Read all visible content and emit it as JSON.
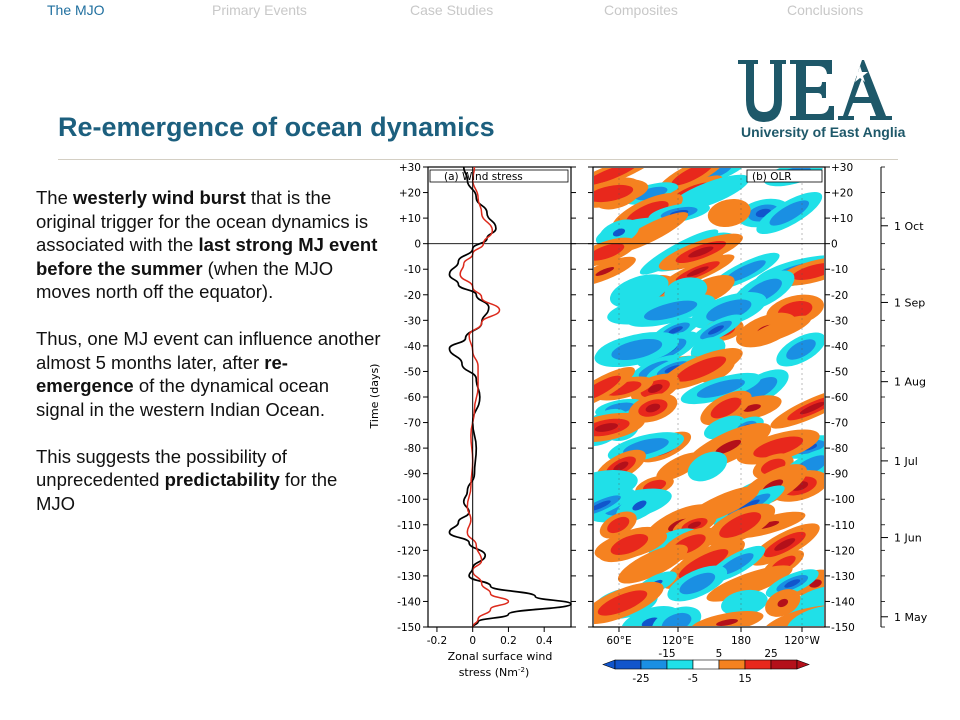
{
  "nav": {
    "items": [
      {
        "label": "The MJO",
        "active": true
      },
      {
        "label": "Primary Events",
        "active": false
      },
      {
        "label": "Case Studies",
        "active": false
      },
      {
        "label": "Composites",
        "active": false
      },
      {
        "label": "Conclusions",
        "active": false
      }
    ]
  },
  "logo": {
    "mark": "UEA",
    "caption": "University of East Anglia",
    "color": "#1e5869"
  },
  "slide": {
    "title": "Re-emergence of ocean dynamics",
    "p1": {
      "t1": "The ",
      "b1": "westerly wind burst",
      "t2": " that is the original trigger for the ocean dynamics is associated with the ",
      "b2": "last strong MJ event before the summer",
      "t3": " (when the MJO moves north off the equator)."
    },
    "p2": {
      "t1": "Thus, one MJ event can influence another almost 5 months later, after ",
      "b1": "re-emergence",
      "t2": " of the dynamical ocean signal in the western Indian Ocean."
    },
    "p3": {
      "t1": "This suggests the possibility of unprecedented ",
      "b1": "predictability",
      "t2": " for the MJO"
    }
  },
  "figure": {
    "panel_a_label": "(a) Wind stress",
    "panel_b_label": "(b) OLR",
    "y_axis_label": "Time (days)",
    "y_ticks": [
      30,
      20,
      10,
      0,
      -10,
      -20,
      -30,
      -40,
      -50,
      -60,
      -70,
      -80,
      -90,
      -100,
      -110,
      -120,
      -130,
      -140,
      -150
    ],
    "y_tick_labels": [
      "+30",
      "+20",
      "+10",
      "0",
      "-10",
      "-20",
      "-30",
      "-40",
      "-50",
      "-60",
      "-70",
      "-80",
      "-90",
      "-100",
      "-110",
      "-120",
      "-130",
      "-140",
      "-150"
    ],
    "x_ticks_a": [
      -0.2,
      0,
      0.2,
      0.4
    ],
    "x_tick_labels_a": [
      "-0.2",
      "0",
      "0.2",
      "0.4"
    ],
    "x_label_a_line1": "Zonal surface wind",
    "x_label_a_line2": "stress (Nm",
    "x_label_a_sup": "-2",
    "x_label_a_close": ")",
    "x_ticks_b": [
      "60°E",
      "120°E",
      "180",
      "120°W"
    ],
    "date_labels": [
      {
        "label": "1 Oct",
        "day": 7
      },
      {
        "label": "1 Sep",
        "day": -23
      },
      {
        "label": "1 Aug",
        "day": -54
      },
      {
        "label": "1 Jul",
        "day": -85
      },
      {
        "label": "1 Jun",
        "day": -115
      },
      {
        "label": "1 May",
        "day": -146
      }
    ],
    "colorbar_top_labels": [
      "-15",
      "5",
      "25"
    ],
    "colorbar_bottom_labels": [
      "-25",
      "-5",
      "15"
    ],
    "colorbar_colors": [
      "#1155cc",
      "#1a8fe3",
      "#20e0e8",
      "#ffffff",
      "#f58220",
      "#e8281c",
      "#b4101a"
    ],
    "series": [
      {
        "color": "#000000",
        "points": [
          [
            -0.05,
            30
          ],
          [
            -0.03,
            25
          ],
          [
            0.02,
            18
          ],
          [
            0.08,
            12
          ],
          [
            0.13,
            6
          ],
          [
            0.08,
            2
          ],
          [
            0.0,
            -2
          ],
          [
            -0.08,
            -7
          ],
          [
            -0.13,
            -12
          ],
          [
            -0.08,
            -16
          ],
          [
            0.02,
            -20
          ],
          [
            0.09,
            -25
          ],
          [
            0.05,
            -31
          ],
          [
            -0.04,
            -37
          ],
          [
            -0.13,
            -41
          ],
          [
            -0.06,
            -47
          ],
          [
            0.02,
            -53
          ],
          [
            0.04,
            -60
          ],
          [
            0.0,
            -70
          ],
          [
            0.02,
            -80
          ],
          [
            0.01,
            -90
          ],
          [
            -0.03,
            -97
          ],
          [
            -0.05,
            -101
          ],
          [
            -0.02,
            -105
          ],
          [
            -0.08,
            -109
          ],
          [
            -0.13,
            -113
          ],
          [
            -0.02,
            -117
          ],
          [
            0.07,
            -122
          ],
          [
            0.0,
            -127
          ],
          [
            -0.02,
            -130
          ],
          [
            0.1,
            -134
          ],
          [
            0.35,
            -138
          ],
          [
            0.55,
            -141
          ],
          [
            0.2,
            -145
          ],
          [
            0.03,
            -148
          ],
          [
            0.0,
            -150
          ]
        ]
      },
      {
        "color": "#dc2a1c",
        "points": [
          [
            0.01,
            30
          ],
          [
            0.0,
            25
          ],
          [
            0.03,
            18
          ],
          [
            0.05,
            12
          ],
          [
            0.11,
            5
          ],
          [
            0.06,
            0
          ],
          [
            0.0,
            -4
          ],
          [
            -0.05,
            -8
          ],
          [
            -0.07,
            -12
          ],
          [
            0.0,
            -17
          ],
          [
            0.05,
            -21
          ],
          [
            0.15,
            -26
          ],
          [
            0.05,
            -31
          ],
          [
            -0.02,
            -36
          ],
          [
            0.0,
            -42
          ],
          [
            0.03,
            -48
          ],
          [
            0.03,
            -56
          ],
          [
            0.01,
            -65
          ],
          [
            -0.01,
            -75
          ],
          [
            0.0,
            -85
          ],
          [
            -0.01,
            -95
          ],
          [
            -0.03,
            -103
          ],
          [
            -0.01,
            -108
          ],
          [
            -0.03,
            -113
          ],
          [
            0.02,
            -118
          ],
          [
            0.05,
            -124
          ],
          [
            0.0,
            -128
          ],
          [
            0.05,
            -133
          ],
          [
            0.1,
            -137
          ],
          [
            0.2,
            -140
          ],
          [
            0.1,
            -143
          ],
          [
            0.03,
            -147
          ],
          [
            0.0,
            -150
          ]
        ]
      }
    ]
  }
}
